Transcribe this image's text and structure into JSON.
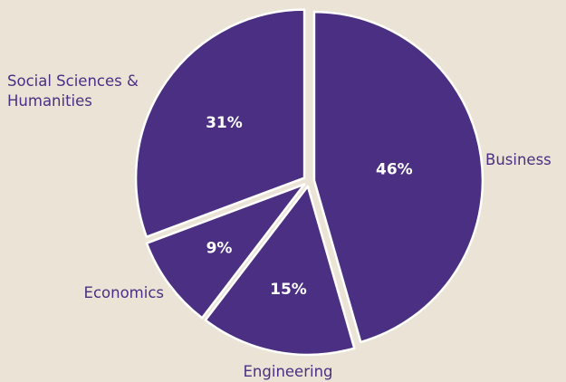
{
  "chart_data": {
    "type": "pie",
    "slices": [
      {
        "label": "Business",
        "value": 46,
        "value_label": "46%"
      },
      {
        "label": "Engineering",
        "value": 15,
        "value_label": "15%"
      },
      {
        "label": "Economics",
        "value": 9,
        "value_label": "9%"
      },
      {
        "label": "Social Sciences & Humanities",
        "value": 31,
        "value_label": "31%"
      }
    ],
    "colors": {
      "slice": "#4a2f82",
      "border": "#ffffff",
      "background": "#ebe4d6",
      "label_text": "#4a2f82",
      "value_text": "#ffffff"
    },
    "exploded": true,
    "legend": "none"
  }
}
